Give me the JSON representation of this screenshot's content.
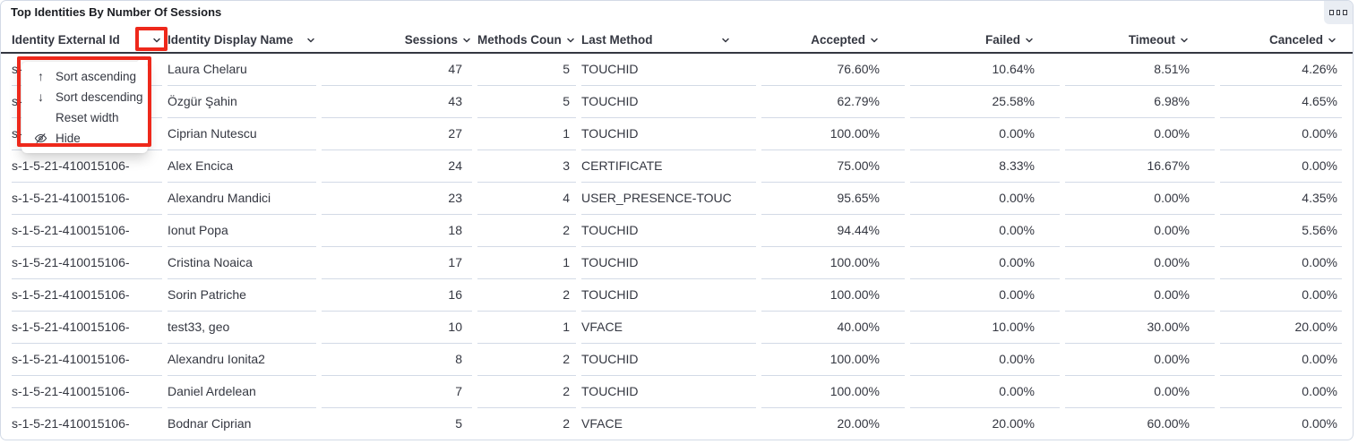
{
  "title": "Top Identities By Number Of Sessions",
  "corner_button": {
    "icon": "boxes-horizontal-icon"
  },
  "annotation_color": "#ee281b",
  "colors": {
    "text": "#343741",
    "title_text": "#1a1c21",
    "divider": "#d3dae6",
    "header_underline": "#343741",
    "corner_button_bg": "#e9edf3"
  },
  "column_menu": {
    "items": [
      {
        "icon": "arrow-up-icon",
        "label": "Sort ascending"
      },
      {
        "icon": "arrow-down-icon",
        "label": "Sort descending"
      },
      {
        "icon": "",
        "label": "Reset width"
      },
      {
        "icon": "eye-closed-icon",
        "label": "Hide"
      }
    ]
  },
  "table": {
    "columns": [
      {
        "label": "Identity External Id"
      },
      {
        "label": "Identity Display Name"
      },
      {
        "label": "Sessions"
      },
      {
        "label": "Methods Count"
      },
      {
        "label": "Last Method"
      },
      {
        "label": "Accepted"
      },
      {
        "label": "Failed"
      },
      {
        "label": "Timeout"
      },
      {
        "label": "Canceled"
      }
    ],
    "rows": [
      [
        "s-1-5-21-410015106-",
        "Laura Chelaru",
        "47",
        "5",
        "TOUCHID",
        "76.60%",
        "10.64%",
        "8.51%",
        "4.26%"
      ],
      [
        "s-1-5-21-410015106-",
        "Özgür Şahin",
        "43",
        "5",
        "TOUCHID",
        "62.79%",
        "25.58%",
        "6.98%",
        "4.65%"
      ],
      [
        "s-1-5-21-410015106-",
        "Ciprian Nutescu",
        "27",
        "1",
        "TOUCHID",
        "100.00%",
        "0.00%",
        "0.00%",
        "0.00%"
      ],
      [
        "s-1-5-21-410015106-",
        "Alex Encica",
        "24",
        "3",
        "CERTIFICATE",
        "75.00%",
        "8.33%",
        "16.67%",
        "0.00%"
      ],
      [
        "s-1-5-21-410015106-",
        "Alexandru Mandici",
        "23",
        "4",
        "USER_PRESENCE-TOUC",
        "95.65%",
        "0.00%",
        "0.00%",
        "4.35%"
      ],
      [
        "s-1-5-21-410015106-",
        "Ionut Popa",
        "18",
        "2",
        "TOUCHID",
        "94.44%",
        "0.00%",
        "0.00%",
        "5.56%"
      ],
      [
        "s-1-5-21-410015106-",
        "Cristina Noaica",
        "17",
        "1",
        "TOUCHID",
        "100.00%",
        "0.00%",
        "0.00%",
        "0.00%"
      ],
      [
        "s-1-5-21-410015106-",
        "Sorin Patriche",
        "16",
        "2",
        "TOUCHID",
        "100.00%",
        "0.00%",
        "0.00%",
        "0.00%"
      ],
      [
        "s-1-5-21-410015106-",
        "test33, geo",
        "10",
        "1",
        "VFACE",
        "40.00%",
        "10.00%",
        "30.00%",
        "20.00%"
      ],
      [
        "s-1-5-21-410015106-",
        "Alexandru Ionita2",
        "8",
        "2",
        "TOUCHID",
        "100.00%",
        "0.00%",
        "0.00%",
        "0.00%"
      ],
      [
        "s-1-5-21-410015106-",
        "Daniel Ardelean",
        "7",
        "2",
        "TOUCHID",
        "100.00%",
        "0.00%",
        "0.00%",
        "0.00%"
      ],
      [
        "s-1-5-21-410015106-",
        "Bodnar Ciprian",
        "5",
        "2",
        "VFACE",
        "20.00%",
        "20.00%",
        "60.00%",
        "0.00%"
      ]
    ]
  }
}
